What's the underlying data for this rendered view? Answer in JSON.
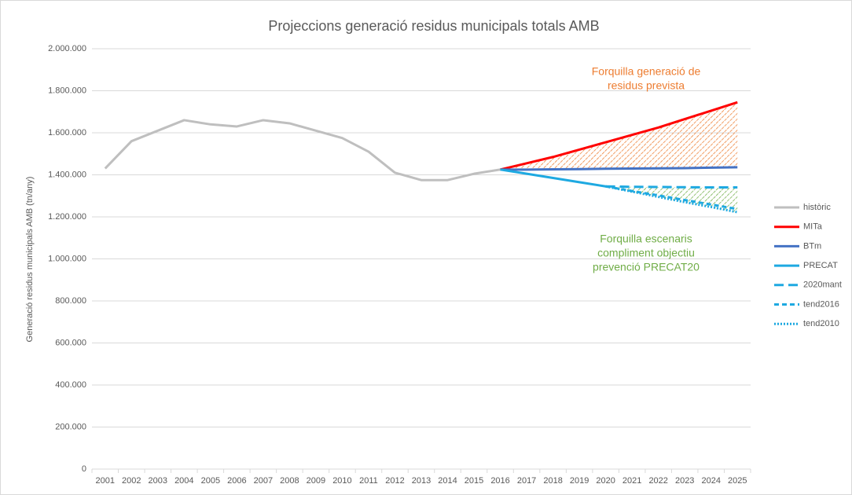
{
  "chart_data": {
    "type": "line",
    "title": "Projeccions generació residus municipals totals AMB",
    "y_label": "Generació residus municipals AMB (tn/any)",
    "categories": [
      "2001",
      "2002",
      "2003",
      "2004",
      "2005",
      "2006",
      "2007",
      "2008",
      "2009",
      "2010",
      "2011",
      "2012",
      "2013",
      "2014",
      "2015",
      "2016",
      "2017",
      "2018",
      "2019",
      "2020",
      "2021",
      "2022",
      "2023",
      "2024",
      "2025"
    ],
    "series": [
      {
        "name": "històric",
        "color": "#bfbfbf",
        "dash": "solid",
        "values": [
          1430000,
          1560000,
          1610000,
          1660000,
          1640000,
          1630000,
          1660000,
          1645000,
          1610000,
          1575000,
          1510000,
          1410000,
          1375000,
          1375000,
          1405000,
          1425000,
          null,
          null,
          null,
          null,
          null,
          null,
          null,
          null,
          null
        ]
      },
      {
        "name": "MITa",
        "color": "#ff0000",
        "dash": "solid",
        "values": [
          null,
          null,
          null,
          null,
          null,
          null,
          null,
          null,
          null,
          null,
          null,
          null,
          null,
          null,
          null,
          1425000,
          1455000,
          1485000,
          1520000,
          1555000,
          1590000,
          1625000,
          1665000,
          1705000,
          1745000
        ]
      },
      {
        "name": "BTm",
        "color": "#4472c4",
        "dash": "solid",
        "values": [
          null,
          null,
          null,
          null,
          null,
          null,
          null,
          null,
          null,
          null,
          null,
          null,
          null,
          null,
          null,
          1425000,
          1425000,
          1426000,
          1427000,
          1429000,
          1430000,
          1431000,
          1432000,
          1434000,
          1436000
        ]
      },
      {
        "name": "PRECAT",
        "color": "#1ea9e1",
        "dash": "solid",
        "values": [
          null,
          null,
          null,
          null,
          null,
          null,
          null,
          null,
          null,
          null,
          null,
          null,
          null,
          null,
          null,
          1425000,
          1405000,
          1385000,
          1365000,
          1345000,
          null,
          null,
          null,
          null,
          null
        ]
      },
      {
        "name": "2020mant",
        "color": "#1ea9e1",
        "dash": "long-dash",
        "values": [
          null,
          null,
          null,
          null,
          null,
          null,
          null,
          null,
          null,
          null,
          null,
          null,
          null,
          null,
          null,
          null,
          null,
          null,
          null,
          1345000,
          1343000,
          1342000,
          1341000,
          1340000,
          1340000
        ]
      },
      {
        "name": "tend2016",
        "color": "#1ea9e1",
        "dash": "dash",
        "values": [
          null,
          null,
          null,
          null,
          null,
          null,
          null,
          null,
          null,
          null,
          null,
          null,
          null,
          null,
          null,
          null,
          null,
          null,
          null,
          1345000,
          1323000,
          1302000,
          1280000,
          1259000,
          1237000
        ]
      },
      {
        "name": "tend2010",
        "color": "#1ea9e1",
        "dash": "dot",
        "values": [
          null,
          null,
          null,
          null,
          null,
          null,
          null,
          null,
          null,
          null,
          null,
          null,
          null,
          null,
          null,
          null,
          null,
          null,
          null,
          1345000,
          1320000,
          1295000,
          1270000,
          1247000,
          1222000
        ]
      }
    ],
    "annotations": [
      {
        "text": [
          "Forquilla generació de",
          "residus prevista"
        ],
        "color": "#ed7d31"
      },
      {
        "text": [
          "Forquilla escenaris",
          "compliment objectiu",
          "prevenció PRECAT20"
        ],
        "color": "#70ad47"
      }
    ],
    "ylim": [
      0,
      2000000
    ],
    "yticks": [
      0,
      {
        "value": 200000,
        "label": "200.000"
      },
      {
        "value": 400000,
        "label": "400.000"
      },
      {
        "value": 600000,
        "label": "600.000"
      },
      {
        "value": 800000,
        "label": "800.000"
      },
      {
        "value": 1000000,
        "label": "1.000.000"
      },
      {
        "value": 1200000,
        "label": "1.200.000"
      },
      {
        "value": 1400000,
        "label": "1.400.000"
      },
      {
        "value": 1600000,
        "label": "1.600.000"
      },
      {
        "value": 1800000,
        "label": "1.800.000"
      },
      {
        "value": 2000000,
        "label": "2.000.000"
      }
    ],
    "grid": true,
    "legend": "right"
  }
}
